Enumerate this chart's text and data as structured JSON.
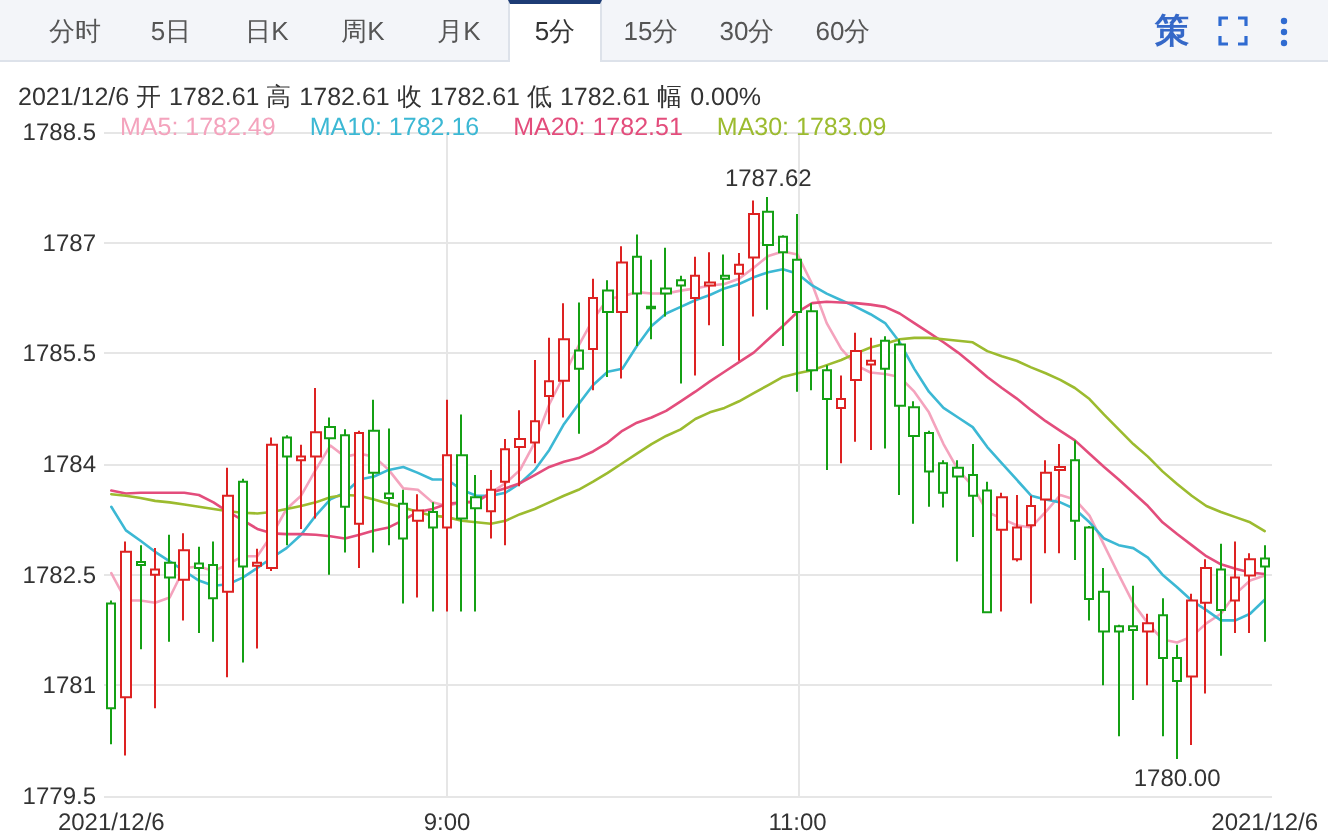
{
  "chart_data": {
    "type": "candlestick",
    "title": "2021/12/6 开 1782.61 高 1782.61 收 1782.61 低 1782.61 幅 0.00%",
    "categories": [
      "2021/12/6",
      null,
      null,
      null,
      null,
      null,
      null,
      null,
      null,
      null,
      null,
      null,
      null,
      null,
      null,
      null,
      null,
      null,
      null,
      null,
      null,
      null,
      null,
      "9:00",
      null,
      null,
      null,
      null,
      null,
      null,
      null,
      null,
      null,
      null,
      null,
      null,
      null,
      null,
      null,
      null,
      null,
      null,
      null,
      null,
      null,
      null,
      null,
      "11:00",
      null,
      null,
      null,
      null,
      null,
      null,
      null,
      null,
      null,
      null,
      null,
      null,
      null,
      null,
      null,
      null,
      null,
      null,
      null,
      null,
      null,
      null,
      null,
      null,
      null,
      null,
      null,
      null,
      null,
      null,
      null,
      "2021/12/6"
    ],
    "ohlc": [
      [
        1782.11,
        1782.15,
        1780.2,
        1780.69
      ],
      [
        1780.84,
        1782.95,
        1780.05,
        1782.81
      ],
      [
        1782.67,
        1782.9,
        1781.49,
        1782.63
      ],
      [
        1782.5,
        1782.86,
        1780.69,
        1782.57
      ],
      [
        1782.66,
        1783.04,
        1781.59,
        1782.46
      ],
      [
        1782.43,
        1783.06,
        1781.88,
        1782.83
      ],
      [
        1782.65,
        1782.88,
        1781.71,
        1782.59
      ],
      [
        1782.63,
        1782.95,
        1781.59,
        1782.18
      ],
      [
        1782.27,
        1783.95,
        1781.11,
        1783.57
      ],
      [
        1783.76,
        1783.8,
        1781.31,
        1782.61
      ],
      [
        1782.62,
        1782.85,
        1781.5,
        1782.66
      ],
      [
        1782.59,
        1784.36,
        1782.55,
        1784.26
      ],
      [
        1784.36,
        1784.39,
        1782.9,
        1784.1
      ],
      [
        1784.05,
        1784.26,
        1783.12,
        1784.1
      ],
      [
        1784.1,
        1785.03,
        1783.26,
        1784.43
      ],
      [
        1784.5,
        1784.63,
        1782.5,
        1784.35
      ],
      [
        1784.39,
        1784.47,
        1782.8,
        1783.42
      ],
      [
        1783.19,
        1784.45,
        1782.59,
        1784.42
      ],
      [
        1784.45,
        1784.87,
        1782.8,
        1783.88
      ],
      [
        1783.6,
        1784.48,
        1782.9,
        1783.54
      ],
      [
        1783.46,
        1783.65,
        1782.11,
        1782.99
      ],
      [
        1783.23,
        1783.59,
        1782.19,
        1783.37
      ],
      [
        1783.35,
        1783.48,
        1782.0,
        1783.14
      ],
      [
        1783.14,
        1784.87,
        1782.0,
        1784.12
      ],
      [
        1784.12,
        1784.67,
        1782.0,
        1783.26
      ],
      [
        1783.55,
        1783.85,
        1782.0,
        1783.4
      ],
      [
        1783.36,
        1783.92,
        1782.99,
        1783.65
      ],
      [
        1783.76,
        1784.34,
        1782.9,
        1784.2
      ],
      [
        1784.23,
        1784.73,
        1783.7,
        1784.34
      ],
      [
        1784.29,
        1785.41,
        1784.01,
        1784.58
      ],
      [
        1784.92,
        1785.71,
        1784.54,
        1785.12
      ],
      [
        1785.13,
        1786.18,
        1784.63,
        1785.69
      ],
      [
        1785.54,
        1786.19,
        1784.41,
        1785.29
      ],
      [
        1785.56,
        1786.51,
        1785.0,
        1786.25
      ],
      [
        1786.35,
        1786.49,
        1785.18,
        1786.06
      ],
      [
        1786.06,
        1786.95,
        1785.16,
        1786.73
      ],
      [
        1786.81,
        1787.11,
        1785.6,
        1786.31
      ],
      [
        1786.13,
        1786.77,
        1785.69,
        1786.11
      ],
      [
        1786.38,
        1786.93,
        1786.0,
        1786.31
      ],
      [
        1786.49,
        1786.55,
        1785.09,
        1786.42
      ],
      [
        1786.25,
        1786.81,
        1785.2,
        1786.55
      ],
      [
        1786.42,
        1786.87,
        1785.88,
        1786.46
      ],
      [
        1786.55,
        1786.84,
        1785.6,
        1786.51
      ],
      [
        1786.58,
        1786.86,
        1785.4,
        1786.7
      ],
      [
        1786.8,
        1787.57,
        1786.0,
        1787.39
      ],
      [
        1787.42,
        1787.62,
        1786.09,
        1786.97
      ],
      [
        1787.08,
        1787.1,
        1785.6,
        1786.87
      ],
      [
        1786.77,
        1787.39,
        1784.98,
        1786.06
      ],
      [
        1786.07,
        1786.18,
        1785.0,
        1785.27
      ],
      [
        1785.27,
        1785.34,
        1783.92,
        1784.88
      ],
      [
        1784.76,
        1785.2,
        1784.01,
        1784.88
      ],
      [
        1785.14,
        1785.78,
        1784.3,
        1785.53
      ],
      [
        1785.35,
        1785.71,
        1784.19,
        1785.4
      ],
      [
        1785.67,
        1785.73,
        1784.21,
        1785.29
      ],
      [
        1785.62,
        1785.69,
        1783.58,
        1784.79
      ],
      [
        1784.77,
        1784.85,
        1783.19,
        1784.38
      ],
      [
        1784.42,
        1784.45,
        1783.42,
        1783.9
      ],
      [
        1784.01,
        1784.05,
        1783.41,
        1783.61
      ],
      [
        1783.95,
        1784.05,
        1782.68,
        1783.83
      ],
      [
        1783.85,
        1784.27,
        1783.01,
        1783.57
      ],
      [
        1783.64,
        1783.76,
        1781.99,
        1781.99
      ],
      [
        1783.11,
        1783.61,
        1782.0,
        1783.55
      ],
      [
        1782.71,
        1783.58,
        1782.68,
        1783.14
      ],
      [
        1783.17,
        1783.57,
        1782.11,
        1783.43
      ],
      [
        1783.52,
        1784.05,
        1782.79,
        1783.88
      ],
      [
        1783.92,
        1784.27,
        1782.79,
        1783.96
      ],
      [
        1784.05,
        1784.32,
        1782.7,
        1783.23
      ],
      [
        1783.14,
        1783.16,
        1781.88,
        1782.17
      ],
      [
        1782.27,
        1782.59,
        1781.0,
        1781.73
      ],
      [
        1781.8,
        1781.82,
        1780.31,
        1781.73
      ],
      [
        1781.8,
        1782.35,
        1780.8,
        1781.75
      ],
      [
        1781.73,
        1781.97,
        1781.0,
        1781.84
      ],
      [
        1781.95,
        1782.18,
        1780.31,
        1781.37
      ],
      [
        1781.37,
        1781.55,
        1780.0,
        1781.06
      ],
      [
        1781.12,
        1782.24,
        1780.19,
        1782.15
      ],
      [
        1782.12,
        1782.71,
        1780.89,
        1782.59
      ],
      [
        1782.57,
        1782.92,
        1781.4,
        1782.02
      ],
      [
        1782.15,
        1782.95,
        1781.71,
        1782.46
      ],
      [
        1782.49,
        1782.79,
        1781.71,
        1782.71
      ],
      [
        1782.72,
        1782.9,
        1781.59,
        1782.61
      ]
    ],
    "colors": [
      "#14a014",
      "#dd2222",
      "#14a014",
      "#dd2222",
      "#14a014",
      "#dd2222",
      "#14a014",
      "#14a014",
      "#dd2222",
      "#14a014",
      "#dd2222",
      "#dd2222",
      "#14a014",
      "#dd2222",
      "#dd2222",
      "#14a014",
      "#14a014",
      "#dd2222",
      "#14a014",
      "#14a014",
      "#14a014",
      "#dd2222",
      "#14a014",
      "#dd2222",
      "#14a014",
      "#14a014",
      "#dd2222",
      "#dd2222",
      "#dd2222",
      "#dd2222",
      "#dd2222",
      "#dd2222",
      "#14a014",
      "#dd2222",
      "#14a014",
      "#dd2222",
      "#14a014",
      "#14a014",
      "#14a014",
      "#14a014",
      "#dd2222",
      "#dd2222",
      "#14a014",
      "#dd2222",
      "#dd2222",
      "#14a014",
      "#14a014",
      "#14a014",
      "#14a014",
      "#14a014",
      "#dd2222",
      "#dd2222",
      "#dd2222",
      "#14a014",
      "#14a014",
      "#14a014",
      "#14a014",
      "#14a014",
      "#14a014",
      "#14a014",
      "#14a014",
      "#dd2222",
      "#dd2222",
      "#dd2222",
      "#dd2222",
      "#dd2222",
      "#14a014",
      "#14a014",
      "#14a014",
      "#14a014",
      "#14a014",
      "#dd2222",
      "#14a014",
      "#14a014",
      "#dd2222",
      "#dd2222",
      "#14a014",
      "#dd2222",
      "#dd2222",
      "#14a014"
    ],
    "series": [
      {
        "name": "MA5: 1782.49",
        "type": "line",
        "color": "#f4a3bd",
        "values": [
          1782.52,
          1782.15,
          1782.15,
          1782.12,
          1782.19,
          1782.59,
          1782.61,
          1782.55,
          1782.64,
          1782.75,
          1782.75,
          1783.04,
          1783.39,
          1783.57,
          1783.92,
          1784.25,
          1784.1,
          1784.14,
          1784.1,
          1783.92,
          1783.67,
          1783.65,
          1783.48,
          1783.43,
          1783.48,
          1783.48,
          1783.61,
          1783.74,
          1783.92,
          1784.29,
          1784.81,
          1785.2,
          1785.6,
          1785.96,
          1786.24,
          1786.27,
          1786.33,
          1786.31,
          1786.31,
          1786.35,
          1786.38,
          1786.42,
          1786.44,
          1786.51,
          1786.66,
          1786.82,
          1786.88,
          1786.84,
          1786.44,
          1785.91,
          1785.56,
          1785.34,
          1785.24,
          1785.22,
          1785.18,
          1784.98,
          1784.7,
          1784.27,
          1783.92,
          1783.7,
          1783.35,
          1783.26,
          1783.17,
          1783.14,
          1783.35,
          1783.58,
          1783.52,
          1783.3,
          1782.9,
          1782.5,
          1782.11,
          1781.84,
          1781.62,
          1781.58,
          1781.66,
          1781.84,
          1781.97,
          1782.24,
          1782.42,
          1782.49
        ]
      },
      {
        "name": "MA10: 1782.16",
        "type": "line",
        "color": "#3cb8d4",
        "values": [
          1783.42,
          1783.1,
          1782.96,
          1782.81,
          1782.68,
          1782.55,
          1782.42,
          1782.35,
          1782.37,
          1782.46,
          1782.59,
          1782.73,
          1782.86,
          1783.04,
          1783.3,
          1783.52,
          1783.61,
          1783.79,
          1783.83,
          1783.92,
          1783.96,
          1783.88,
          1783.79,
          1783.79,
          1783.65,
          1783.57,
          1783.57,
          1783.61,
          1783.74,
          1783.92,
          1784.19,
          1784.54,
          1784.81,
          1785.07,
          1785.25,
          1785.29,
          1785.6,
          1785.87,
          1786.04,
          1786.13,
          1786.22,
          1786.29,
          1786.38,
          1786.44,
          1786.53,
          1786.6,
          1786.64,
          1786.58,
          1786.42,
          1786.31,
          1786.22,
          1786.13,
          1786.03,
          1785.91,
          1785.65,
          1785.29,
          1784.98,
          1784.76,
          1784.63,
          1784.5,
          1784.23,
          1784.01,
          1783.79,
          1783.57,
          1783.52,
          1783.48,
          1783.39,
          1783.21,
          1782.99,
          1782.9,
          1782.86,
          1782.73,
          1782.5,
          1782.33,
          1782.15,
          1782.02,
          1781.88,
          1781.88,
          1781.97,
          1782.16
        ]
      },
      {
        "name": "MA20: 1782.51",
        "type": "line",
        "color": "#e34d7c",
        "values": [
          1783.64,
          1783.6,
          1783.61,
          1783.61,
          1783.61,
          1783.61,
          1783.58,
          1783.48,
          1783.35,
          1783.24,
          1783.12,
          1783.06,
          1783.05,
          1783.05,
          1783.04,
          1783.02,
          1782.99,
          1783.04,
          1783.1,
          1783.14,
          1783.24,
          1783.35,
          1783.39,
          1783.46,
          1783.48,
          1783.49,
          1783.61,
          1783.67,
          1783.74,
          1783.85,
          1783.96,
          1784.03,
          1784.08,
          1784.17,
          1784.29,
          1784.45,
          1784.56,
          1784.63,
          1784.72,
          1784.85,
          1784.98,
          1785.12,
          1785.25,
          1785.38,
          1785.51,
          1785.69,
          1785.87,
          1786.06,
          1786.18,
          1786.2,
          1786.19,
          1786.18,
          1786.16,
          1786.13,
          1786.04,
          1785.91,
          1785.78,
          1785.65,
          1785.51,
          1785.35,
          1785.18,
          1785.03,
          1784.89,
          1784.73,
          1784.58,
          1784.45,
          1784.32,
          1784.14,
          1783.96,
          1783.79,
          1783.61,
          1783.43,
          1783.21,
          1783.05,
          1782.9,
          1782.75,
          1782.64,
          1782.58,
          1782.53,
          1782.51
        ]
      },
      {
        "name": "MA30: 1783.09",
        "type": "line",
        "color": "#9cbb2f",
        "values": [
          1783.59,
          1783.57,
          1783.54,
          1783.5,
          1783.48,
          1783.45,
          1783.42,
          1783.39,
          1783.36,
          1783.34,
          1783.33,
          1783.35,
          1783.39,
          1783.43,
          1783.48,
          1783.55,
          1783.58,
          1783.57,
          1783.52,
          1783.46,
          1783.41,
          1783.35,
          1783.3,
          1783.28,
          1783.23,
          1783.21,
          1783.19,
          1783.23,
          1783.32,
          1783.39,
          1783.48,
          1783.57,
          1783.65,
          1783.76,
          1783.88,
          1784.01,
          1784.14,
          1784.27,
          1784.38,
          1784.47,
          1784.61,
          1784.7,
          1784.76,
          1784.85,
          1784.96,
          1785.07,
          1785.18,
          1785.23,
          1785.27,
          1785.34,
          1785.41,
          1785.5,
          1785.58,
          1785.63,
          1785.69,
          1785.71,
          1785.71,
          1785.69,
          1785.67,
          1785.65,
          1785.53,
          1785.46,
          1785.4,
          1785.31,
          1785.23,
          1785.14,
          1785.03,
          1784.88,
          1784.67,
          1784.47,
          1784.27,
          1784.1,
          1783.9,
          1783.73,
          1783.57,
          1783.43,
          1783.35,
          1783.28,
          1783.21,
          1783.09
        ]
      }
    ],
    "ylim": [
      1779.5,
      1788.5
    ],
    "yticks": [
      1779.5,
      1781,
      1782.5,
      1784,
      1785.5,
      1787,
      1788.5
    ],
    "grid": true,
    "legend": "top left",
    "marker": "none",
    "line_style": "solid",
    "annotations": [
      "分时",
      "5日",
      "日K",
      "周K",
      "月K",
      "5分",
      "15分",
      "30分",
      "60分",
      "策",
      {
        "text": "1787.62",
        "y": 1787.62
      },
      {
        "text": "1780.00",
        "y": 1780.0
      }
    ]
  }
}
